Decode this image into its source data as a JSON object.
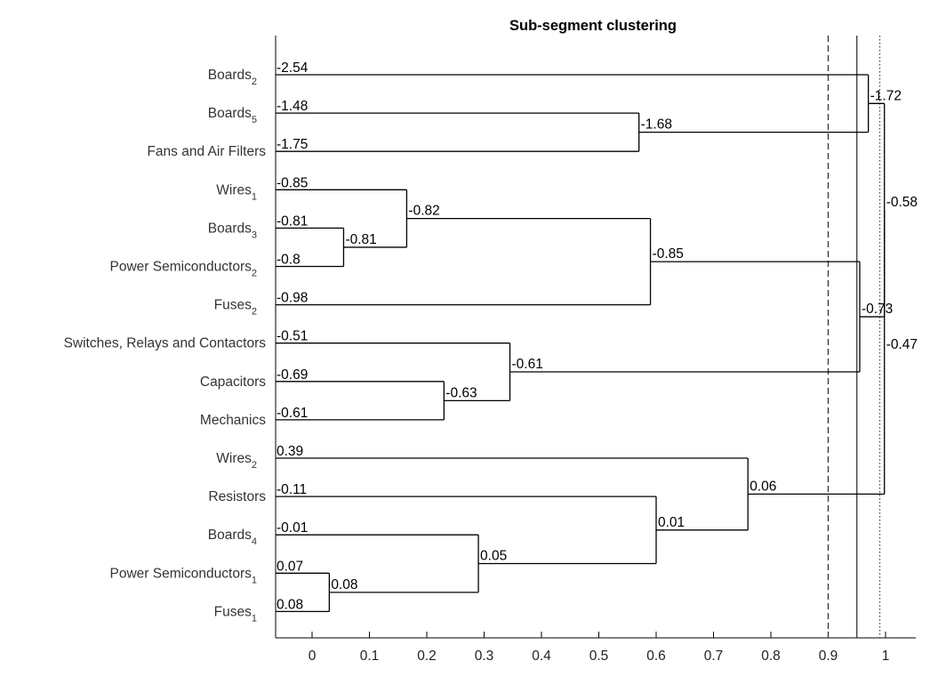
{
  "chart_data": {
    "type": "dendrogram",
    "title": "Sub-segment clustering",
    "xlabel": "",
    "ylabel": "",
    "xlim": [
      -0.05,
      1.05
    ],
    "xticks": [
      0,
      0.1,
      0.2,
      0.3,
      0.4,
      0.5,
      0.6,
      0.7,
      0.8,
      0.9,
      1
    ],
    "xtick_labels": [
      "0",
      "0.1",
      "0.2",
      "0.3",
      "0.4",
      "0.5",
      "0.6",
      "0.7",
      "0.8",
      "0.9",
      "1"
    ],
    "grid": false,
    "leaves": [
      {
        "label": "Boards",
        "sub": "2",
        "value": "-2.54"
      },
      {
        "label": "Boards",
        "sub": "5",
        "value": "-1.48"
      },
      {
        "label": "Fans and Air Filters",
        "sub": "",
        "value": "-1.75"
      },
      {
        "label": "Wires",
        "sub": "1",
        "value": "-0.85"
      },
      {
        "label": "Boards",
        "sub": "3",
        "value": "-0.81"
      },
      {
        "label": "Power Semiconductors",
        "sub": "2",
        "value": "-0.8"
      },
      {
        "label": "Fuses",
        "sub": "2",
        "value": "-0.98"
      },
      {
        "label": "Switches, Relays and Contactors",
        "sub": "",
        "value": "-0.51"
      },
      {
        "label": "Capacitors",
        "sub": "",
        "value": "-0.69"
      },
      {
        "label": "Mechanics",
        "sub": "",
        "value": "-0.61"
      },
      {
        "label": "Wires",
        "sub": "2",
        "value": "0.39"
      },
      {
        "label": "Resistors",
        "sub": "",
        "value": "-0.11"
      },
      {
        "label": "Boards",
        "sub": "4",
        "value": "-0.01"
      },
      {
        "label": "Power Semiconductors",
        "sub": "1",
        "value": "0.07"
      },
      {
        "label": "Fuses",
        "sub": "1",
        "value": "0.08"
      }
    ],
    "merges": [
      {
        "id": "m1",
        "children": [
          "L13",
          "L14"
        ],
        "height": 0.03,
        "value": "0.08"
      },
      {
        "id": "m2",
        "children": [
          "L12",
          "m1"
        ],
        "height": 0.29,
        "value": "0.05"
      },
      {
        "id": "m3",
        "children": [
          "L11",
          "m2"
        ],
        "height": 0.6,
        "value": "0.01"
      },
      {
        "id": "m4",
        "children": [
          "L10",
          "m3"
        ],
        "height": 0.76,
        "value": "0.06"
      },
      {
        "id": "m5",
        "children": [
          "L4",
          "L5"
        ],
        "height": 0.055,
        "value": "-0.81"
      },
      {
        "id": "m6",
        "children": [
          "L3",
          "m5"
        ],
        "height": 0.165,
        "value": "-0.82"
      },
      {
        "id": "m7",
        "children": [
          "m6",
          "L6"
        ],
        "height": 0.59,
        "value": "-0.85"
      },
      {
        "id": "m8",
        "children": [
          "L8",
          "L9"
        ],
        "height": 0.23,
        "value": "-0.63"
      },
      {
        "id": "m9",
        "children": [
          "L7",
          "m8"
        ],
        "height": 0.345,
        "value": "-0.61"
      },
      {
        "id": "m10",
        "children": [
          "m7",
          "m9"
        ],
        "height": 0.955,
        "value": "-0.73"
      },
      {
        "id": "m11",
        "children": [
          "L1",
          "L2"
        ],
        "height": 0.57,
        "value": "-1.68"
      },
      {
        "id": "m12",
        "children": [
          "L0",
          "m11"
        ],
        "height": 0.97,
        "value": "-1.72"
      },
      {
        "id": "m13",
        "children": [
          "m12",
          "m10"
        ],
        "height": 0.998,
        "value": "-0.58"
      },
      {
        "id": "m14",
        "children": [
          "m13",
          "m4"
        ],
        "height": 0.998,
        "value": "-0.47"
      }
    ],
    "thresholds": [
      {
        "x": 0.9,
        "style": "dashed"
      },
      {
        "x": 0.95,
        "style": "solid"
      },
      {
        "x": 0.99,
        "style": "dotted"
      }
    ]
  }
}
